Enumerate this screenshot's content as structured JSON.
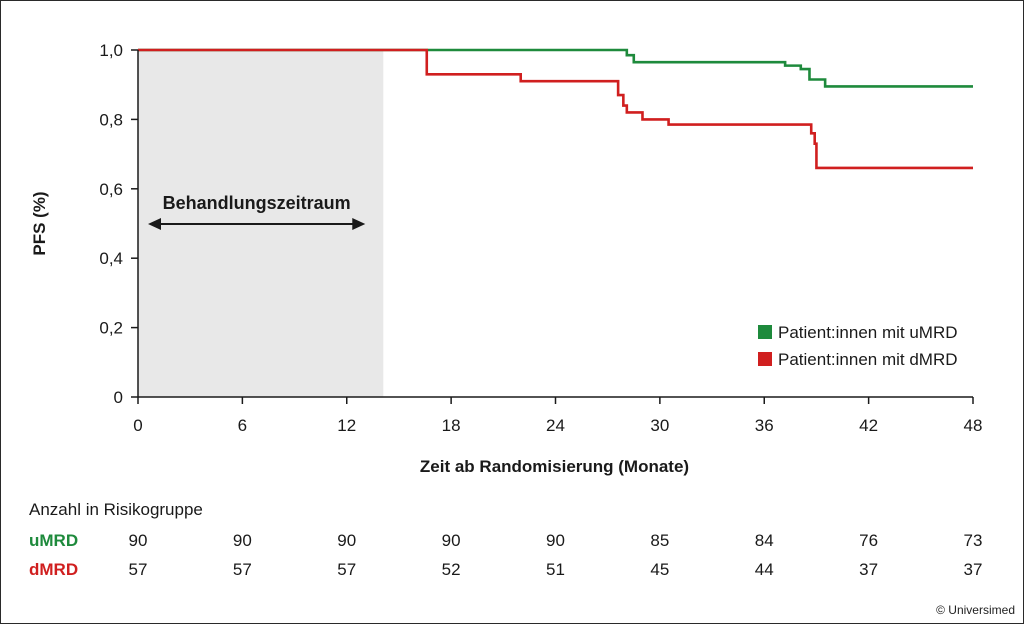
{
  "chart_data": {
    "type": "line",
    "step": true,
    "xlabel": "Zeit ab Randomisierung (Monate)",
    "ylabel": "PFS (%)",
    "xlim": [
      0,
      48
    ],
    "ylim": [
      0,
      1
    ],
    "x_ticks": [
      0,
      6,
      12,
      18,
      24,
      30,
      36,
      42,
      48
    ],
    "x_tick_labels": [
      "0",
      "6",
      "12",
      "18",
      "24",
      "30",
      "36",
      "42",
      "48"
    ],
    "y_ticks": [
      0,
      0.2,
      0.4,
      0.6,
      0.8,
      1.0
    ],
    "y_tick_labels": [
      "0",
      "0,2",
      "0,4",
      "0,6",
      "0,8",
      "1,0"
    ],
    "grid": false,
    "legend_position": "bottom-right",
    "shaded_region": {
      "x_start": 0,
      "x_end": 14.1,
      "label": "Behandlungszeitraum",
      "color": "#e8e8e8"
    },
    "series": [
      {
        "name": "Patient:innen mit uMRD",
        "color": "#1e8a3c",
        "x": [
          0,
          27.8,
          28.1,
          28.5,
          36.5,
          37.2,
          38.1,
          38.6,
          39.5,
          48
        ],
        "y": [
          1.0,
          1.0,
          0.985,
          0.965,
          0.965,
          0.955,
          0.945,
          0.915,
          0.895,
          0.895
        ]
      },
      {
        "name": "Patient:innen mit dMRD",
        "color": "#d01f1f",
        "x": [
          0,
          16.3,
          16.6,
          22.0,
          27.3,
          27.6,
          27.9,
          28.1,
          29.0,
          30.5,
          38.5,
          38.7,
          38.9,
          39.0,
          48
        ],
        "y": [
          1.0,
          1.0,
          0.93,
          0.91,
          0.91,
          0.87,
          0.84,
          0.82,
          0.8,
          0.785,
          0.785,
          0.76,
          0.73,
          0.66,
          0.66
        ]
      }
    ]
  },
  "risk_table": {
    "title": "Anzahl in Risikogruppe",
    "rows": [
      {
        "label": "uMRD",
        "color": "#1e8a3c",
        "values": [
          "90",
          "90",
          "90",
          "90",
          "90",
          "85",
          "84",
          "76",
          "73"
        ]
      },
      {
        "label": "dMRD",
        "color": "#d01f1f",
        "values": [
          "57",
          "57",
          "57",
          "52",
          "51",
          "45",
          "44",
          "37",
          "37"
        ]
      }
    ]
  },
  "copyright": "© Universimed"
}
